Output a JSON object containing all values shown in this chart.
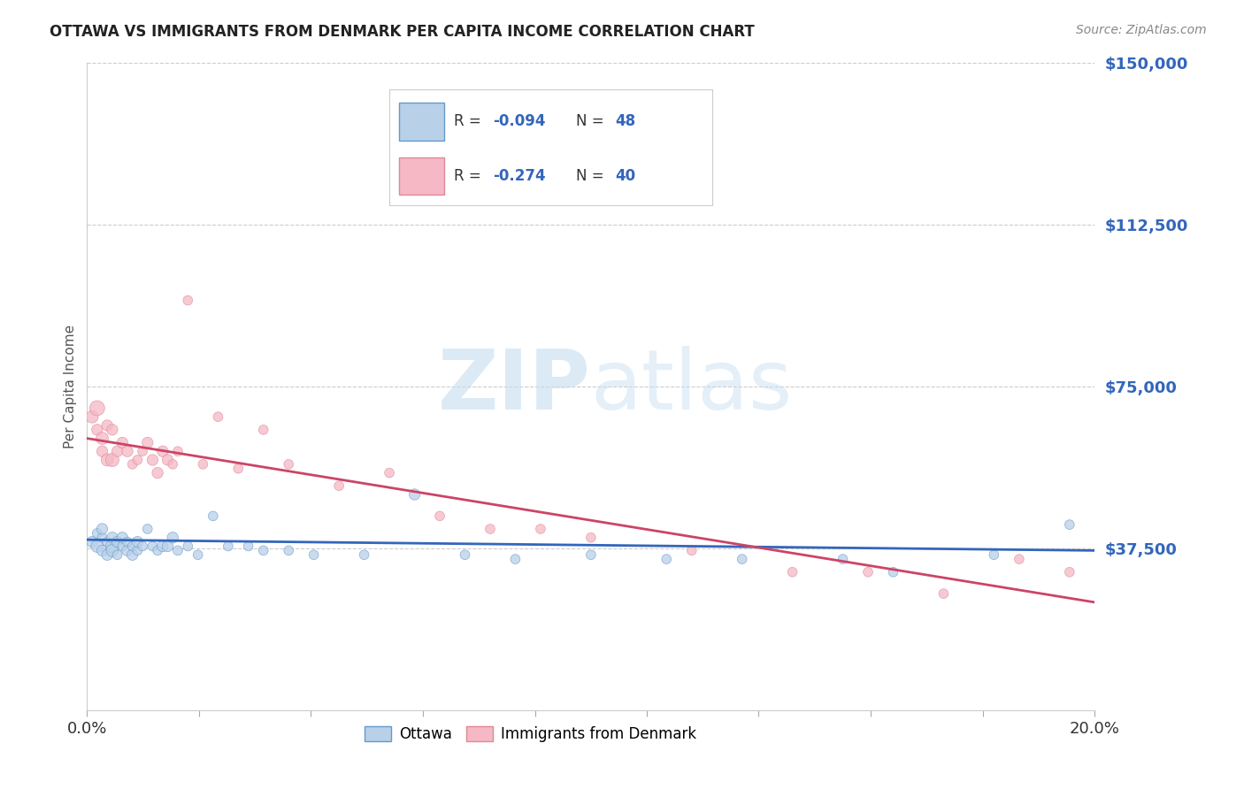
{
  "title": "OTTAWA VS IMMIGRANTS FROM DENMARK PER CAPITA INCOME CORRELATION CHART",
  "source": "Source: ZipAtlas.com",
  "ylabel": "Per Capita Income",
  "xlim": [
    0.0,
    0.2
  ],
  "ylim": [
    0,
    150000
  ],
  "yticks": [
    0,
    37500,
    75000,
    112500,
    150000
  ],
  "ytick_labels": [
    "",
    "$37,500",
    "$75,000",
    "$112,500",
    "$150,000"
  ],
  "xticks": [
    0.0,
    0.0222,
    0.0444,
    0.0667,
    0.0889,
    0.1111,
    0.1333,
    0.1556,
    0.1778,
    0.2
  ],
  "xtick_label_left": "0.0%",
  "xtick_label_right": "20.0%",
  "blue_R": "-0.094",
  "blue_N": "48",
  "pink_R": "-0.274",
  "pink_N": "40",
  "blue_fill": "#b8d0e8",
  "pink_fill": "#f5b8c4",
  "blue_edge": "#6699cc",
  "pink_edge": "#dd8899",
  "blue_line_color": "#3366bb",
  "pink_line_color": "#cc4466",
  "label_color": "#333333",
  "value_color": "#3366bb",
  "title_color": "#222222",
  "tick_color": "#3366bb",
  "grid_color": "#cccccc",
  "watermark_zip": "ZIP",
  "watermark_atlas": "atlas",
  "blue_scatter_x": [
    0.001,
    0.002,
    0.002,
    0.003,
    0.003,
    0.003,
    0.004,
    0.004,
    0.005,
    0.005,
    0.005,
    0.006,
    0.006,
    0.007,
    0.007,
    0.008,
    0.008,
    0.009,
    0.009,
    0.01,
    0.01,
    0.011,
    0.012,
    0.013,
    0.014,
    0.015,
    0.016,
    0.017,
    0.018,
    0.02,
    0.022,
    0.025,
    0.028,
    0.032,
    0.035,
    0.04,
    0.045,
    0.055,
    0.065,
    0.075,
    0.085,
    0.1,
    0.115,
    0.13,
    0.15,
    0.16,
    0.18,
    0.195
  ],
  "blue_scatter_y": [
    39000,
    41000,
    38000,
    40000,
    37000,
    42000,
    39000,
    36000,
    38000,
    40000,
    37000,
    39000,
    36000,
    38000,
    40000,
    37000,
    39000,
    36000,
    38000,
    37000,
    39000,
    38000,
    42000,
    38000,
    37000,
    38000,
    38000,
    40000,
    37000,
    38000,
    36000,
    45000,
    38000,
    38000,
    37000,
    37000,
    36000,
    36000,
    50000,
    36000,
    35000,
    36000,
    35000,
    35000,
    35000,
    32000,
    36000,
    43000
  ],
  "blue_scatter_size": [
    80,
    60,
    100,
    60,
    80,
    80,
    60,
    80,
    120,
    80,
    100,
    80,
    60,
    60,
    80,
    80,
    60,
    80,
    60,
    60,
    80,
    60,
    60,
    60,
    60,
    80,
    80,
    80,
    60,
    60,
    60,
    60,
    60,
    60,
    60,
    60,
    60,
    60,
    80,
    60,
    60,
    60,
    60,
    60,
    60,
    60,
    60,
    60
  ],
  "pink_scatter_x": [
    0.001,
    0.002,
    0.002,
    0.003,
    0.003,
    0.004,
    0.004,
    0.005,
    0.005,
    0.006,
    0.007,
    0.008,
    0.009,
    0.01,
    0.011,
    0.012,
    0.013,
    0.014,
    0.015,
    0.016,
    0.017,
    0.018,
    0.02,
    0.023,
    0.026,
    0.03,
    0.035,
    0.04,
    0.05,
    0.06,
    0.07,
    0.08,
    0.09,
    0.1,
    0.12,
    0.14,
    0.155,
    0.17,
    0.185,
    0.195
  ],
  "pink_scatter_y": [
    68000,
    65000,
    70000,
    60000,
    63000,
    58000,
    66000,
    65000,
    58000,
    60000,
    62000,
    60000,
    57000,
    58000,
    60000,
    62000,
    58000,
    55000,
    60000,
    58000,
    57000,
    60000,
    95000,
    57000,
    68000,
    56000,
    65000,
    57000,
    52000,
    55000,
    45000,
    42000,
    42000,
    40000,
    37000,
    32000,
    32000,
    27000,
    35000,
    32000
  ],
  "pink_scatter_size": [
    100,
    80,
    150,
    80,
    100,
    100,
    80,
    80,
    120,
    80,
    80,
    80,
    60,
    60,
    60,
    80,
    80,
    80,
    80,
    80,
    60,
    60,
    60,
    60,
    60,
    60,
    60,
    60,
    60,
    60,
    60,
    60,
    60,
    60,
    60,
    60,
    60,
    60,
    60,
    60
  ],
  "blue_trend_x0": 0.0,
  "blue_trend_x1": 0.2,
  "blue_trend_y0": 39500,
  "blue_trend_y1": 37000,
  "pink_trend_x0": 0.0,
  "pink_trend_x1": 0.2,
  "pink_trend_y0": 63000,
  "pink_trend_y1": 25000
}
